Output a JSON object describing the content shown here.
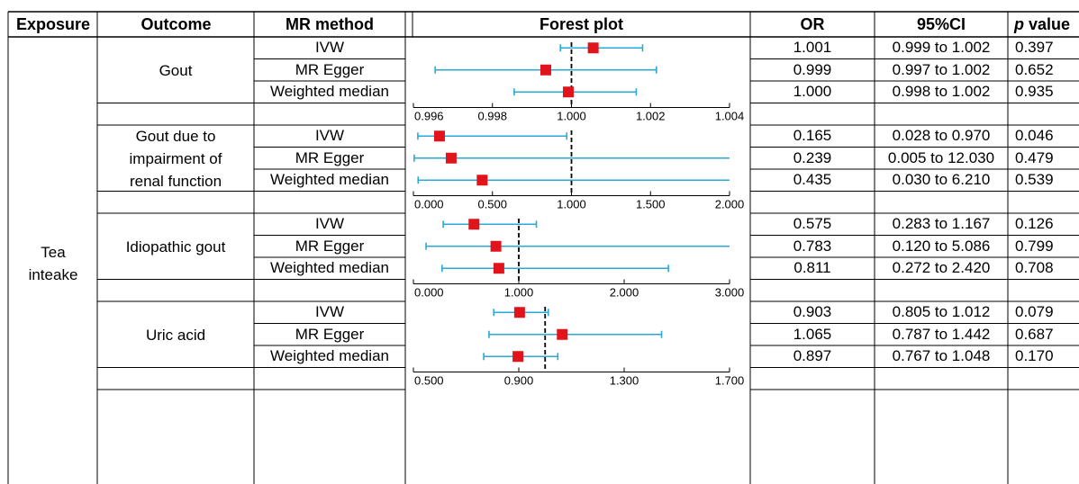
{
  "headers": {
    "exposure": "Exposure",
    "outcome": "Outcome",
    "method": "MR method",
    "forest": "Forest plot",
    "or": "OR",
    "ci": "95%CI",
    "p_italic": "p",
    "p_rest": " value"
  },
  "exposure": "Tea\ninteake",
  "colors": {
    "ci_line": "#29a9d8",
    "point": "#e0141a",
    "ref_line": "#000000",
    "grid": "#000000"
  },
  "chart_data": [
    {
      "type": "forest",
      "outcome": "Gout",
      "xlim": [
        0.996,
        1.004
      ],
      "ticks": [
        "0.996",
        "0.998",
        "1.000",
        "1.002",
        "1.004"
      ],
      "tick_values": [
        0.996,
        0.998,
        1.0,
        1.002,
        1.004
      ],
      "ref": 1.0,
      "rows": [
        {
          "method": "IVW",
          "or": "1.001",
          "ci": "0.999 to 1.002",
          "p": "0.397",
          "est": 1.00055,
          "lo": 0.99972,
          "hi": 1.0018
        },
        {
          "method": "MR Egger",
          "or": "0.999",
          "ci": "0.997 to 1.002",
          "p": "0.652",
          "est": 0.99935,
          "lo": 0.99655,
          "hi": 1.00215
        },
        {
          "method": "Weighted median",
          "or": "1.000",
          "ci": "0.998 to 1.002",
          "p": "0.935",
          "est": 0.99992,
          "lo": 0.99855,
          "hi": 1.00164
        }
      ]
    },
    {
      "type": "forest",
      "outcome": "Gout due to\nimpairment of\nrenal function",
      "xlim": [
        0.0,
        2.0
      ],
      "ticks": [
        "0.000",
        "0.500",
        "1.000",
        "1.500",
        "2.000"
      ],
      "tick_values": [
        0.0,
        0.5,
        1.0,
        1.5,
        2.0
      ],
      "ref": 1.0,
      "rows": [
        {
          "method": "IVW",
          "or": "0.165",
          "ci": "0.028 to 0.970",
          "p": "0.046",
          "est": 0.165,
          "lo": 0.028,
          "hi": 0.97
        },
        {
          "method": "MR Egger",
          "or": "0.239",
          "ci": "0.005 to 12.030",
          "p": "0.479",
          "est": 0.239,
          "lo": 0.005,
          "hi": 2.0
        },
        {
          "method": "Weighted median",
          "or": "0.435",
          "ci": "0.030 to 6.210",
          "p": "0.539",
          "est": 0.435,
          "lo": 0.03,
          "hi": 2.0
        }
      ]
    },
    {
      "type": "forest",
      "outcome": "Idiopathic gout",
      "xlim": [
        0.0,
        3.0
      ],
      "ticks": [
        "0.000",
        "1.000",
        "2.000",
        "3.000"
      ],
      "tick_values": [
        0.0,
        1.0,
        2.0,
        3.0
      ],
      "ref": 1.0,
      "rows": [
        {
          "method": "IVW",
          "or": "0.575",
          "ci": "0.283 to 1.167",
          "p": "0.126",
          "est": 0.575,
          "lo": 0.283,
          "hi": 1.167
        },
        {
          "method": "MR Egger",
          "or": "0.783",
          "ci": "0.120 to 5.086",
          "p": "0.799",
          "est": 0.783,
          "lo": 0.12,
          "hi": 3.0
        },
        {
          "method": "Weighted median",
          "or": "0.811",
          "ci": "0.272 to 2.420",
          "p": "0.708",
          "est": 0.811,
          "lo": 0.272,
          "hi": 2.42
        }
      ]
    },
    {
      "type": "forest",
      "outcome": "Uric acid",
      "xlim": [
        0.5,
        1.7
      ],
      "ticks": [
        "0.500",
        "0.900",
        "1.300",
        "1.700"
      ],
      "tick_values": [
        0.5,
        0.9,
        1.3,
        1.7
      ],
      "ref": 1.0,
      "rows": [
        {
          "method": "IVW",
          "or": "0.903",
          "ci": "0.805 to 1.012",
          "p": "0.079",
          "est": 0.903,
          "lo": 0.805,
          "hi": 1.012
        },
        {
          "method": "MR Egger",
          "or": "1.065",
          "ci": "0.787 to 1.442",
          "p": "0.687",
          "est": 1.065,
          "lo": 0.787,
          "hi": 1.442
        },
        {
          "method": "Weighted median",
          "or": "0.897",
          "ci": "0.767 to 1.048",
          "p": "0.170",
          "est": 0.897,
          "lo": 0.767,
          "hi": 1.048
        }
      ]
    }
  ]
}
